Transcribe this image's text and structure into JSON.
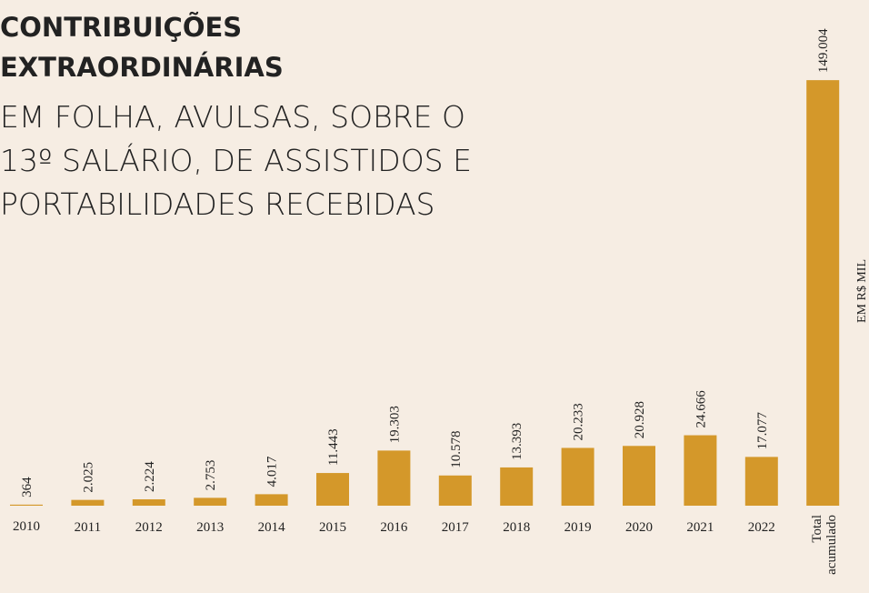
{
  "chart_data": {
    "type": "bar",
    "title": [
      "CONTRIBUIÇÕES",
      "EXTRAORDINÁRIAS"
    ],
    "subtitle": [
      "EM FOLHA, AVULSAS, SOBRE O",
      "13º SALÁRIO, DE ASSISTIDOS E",
      "PORTABILIDADES RECEBIDAS"
    ],
    "unit_label": "EM R$ MIL",
    "categories": [
      "2010",
      "2011",
      "2012",
      "2013",
      "2014",
      "2015",
      "2016",
      "2017",
      "2018",
      "2019",
      "2020",
      "2021",
      "2022",
      "Total acumulado"
    ],
    "values": [
      364,
      2025,
      2224,
      2753,
      4017,
      11443,
      19303,
      10578,
      13393,
      20233,
      20928,
      24666,
      17077,
      149004
    ],
    "value_labels": [
      "364",
      "2.025",
      "2.224",
      "2.753",
      "4.017",
      "11.443",
      "19.303",
      "10.578",
      "13.393",
      "20.233",
      "20.928",
      "24.666",
      "17.077",
      "149.004"
    ],
    "color": "#d4982a",
    "ylim": [
      0,
      150000
    ]
  }
}
